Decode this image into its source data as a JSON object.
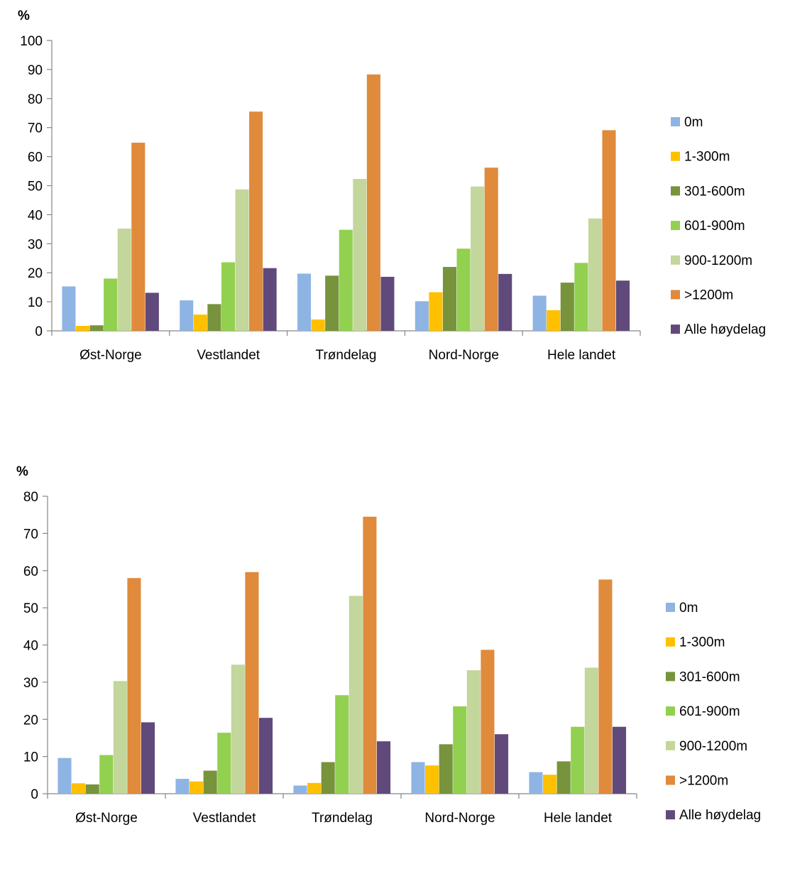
{
  "chart_data": [
    {
      "type": "bar",
      "ylabel": "%",
      "ylim": [
        0,
        100
      ],
      "yticks": [
        0,
        10,
        20,
        30,
        40,
        50,
        60,
        70,
        80,
        90,
        100
      ],
      "categories": [
        "Øst-Norge",
        "Vestlandet",
        "Trøndelag",
        "Nord-Norge",
        "Hele landet"
      ],
      "legend_position": "right",
      "grid": false,
      "series": [
        {
          "name": "0m",
          "color": "#8EB4E3",
          "values": [
            15.3,
            10.5,
            19.7,
            10.2,
            12.1
          ]
        },
        {
          "name": "1-300m",
          "color": "#FFC000",
          "values": [
            1.7,
            5.6,
            3.9,
            13.3,
            7.1
          ]
        },
        {
          "name": "301-600m",
          "color": "#77933C",
          "values": [
            1.9,
            9.2,
            19.0,
            22.0,
            16.6
          ]
        },
        {
          "name": "601-900m",
          "color": "#92D050",
          "values": [
            18.0,
            23.6,
            34.8,
            28.3,
            23.4
          ]
        },
        {
          "name": "900-1200m",
          "color": "#C3D69B",
          "values": [
            35.2,
            48.7,
            52.3,
            49.7,
            38.7
          ]
        },
        {
          "name": ">1200m",
          "color": "#E08A3C",
          "values": [
            64.8,
            75.5,
            88.3,
            56.2,
            69.1
          ]
        },
        {
          "name": "Alle høydelag",
          "color": "#604A7B",
          "values": [
            13.1,
            21.6,
            18.6,
            19.6,
            17.3
          ]
        }
      ]
    },
    {
      "type": "bar",
      "ylabel": "%",
      "ylim": [
        0,
        80
      ],
      "yticks": [
        0,
        10,
        20,
        30,
        40,
        50,
        60,
        70,
        80
      ],
      "categories": [
        "Øst-Norge",
        "Vestlandet",
        "Trøndelag",
        "Nord-Norge",
        "Hele landet"
      ],
      "legend_position": "right",
      "grid": false,
      "series": [
        {
          "name": "0m",
          "color": "#8EB4E3",
          "values": [
            9.6,
            4.0,
            2.2,
            8.5,
            5.8
          ]
        },
        {
          "name": "1-300m",
          "color": "#FFC000",
          "values": [
            2.8,
            3.3,
            2.9,
            7.6,
            5.1
          ]
        },
        {
          "name": "301-600m",
          "color": "#77933C",
          "values": [
            2.5,
            6.2,
            8.5,
            13.3,
            8.7
          ]
        },
        {
          "name": "601-900m",
          "color": "#92D050",
          "values": [
            10.4,
            16.4,
            26.5,
            23.5,
            18.0
          ]
        },
        {
          "name": "900-1200m",
          "color": "#C3D69B",
          "values": [
            30.3,
            34.7,
            53.2,
            33.2,
            33.9
          ]
        },
        {
          "name": ">1200m",
          "color": "#E08A3C",
          "values": [
            58.0,
            59.6,
            74.5,
            38.7,
            57.6
          ]
        },
        {
          "name": "Alle høydelag",
          "color": "#604A7B",
          "values": [
            19.2,
            20.4,
            14.1,
            16.0,
            18.0
          ]
        }
      ]
    }
  ]
}
